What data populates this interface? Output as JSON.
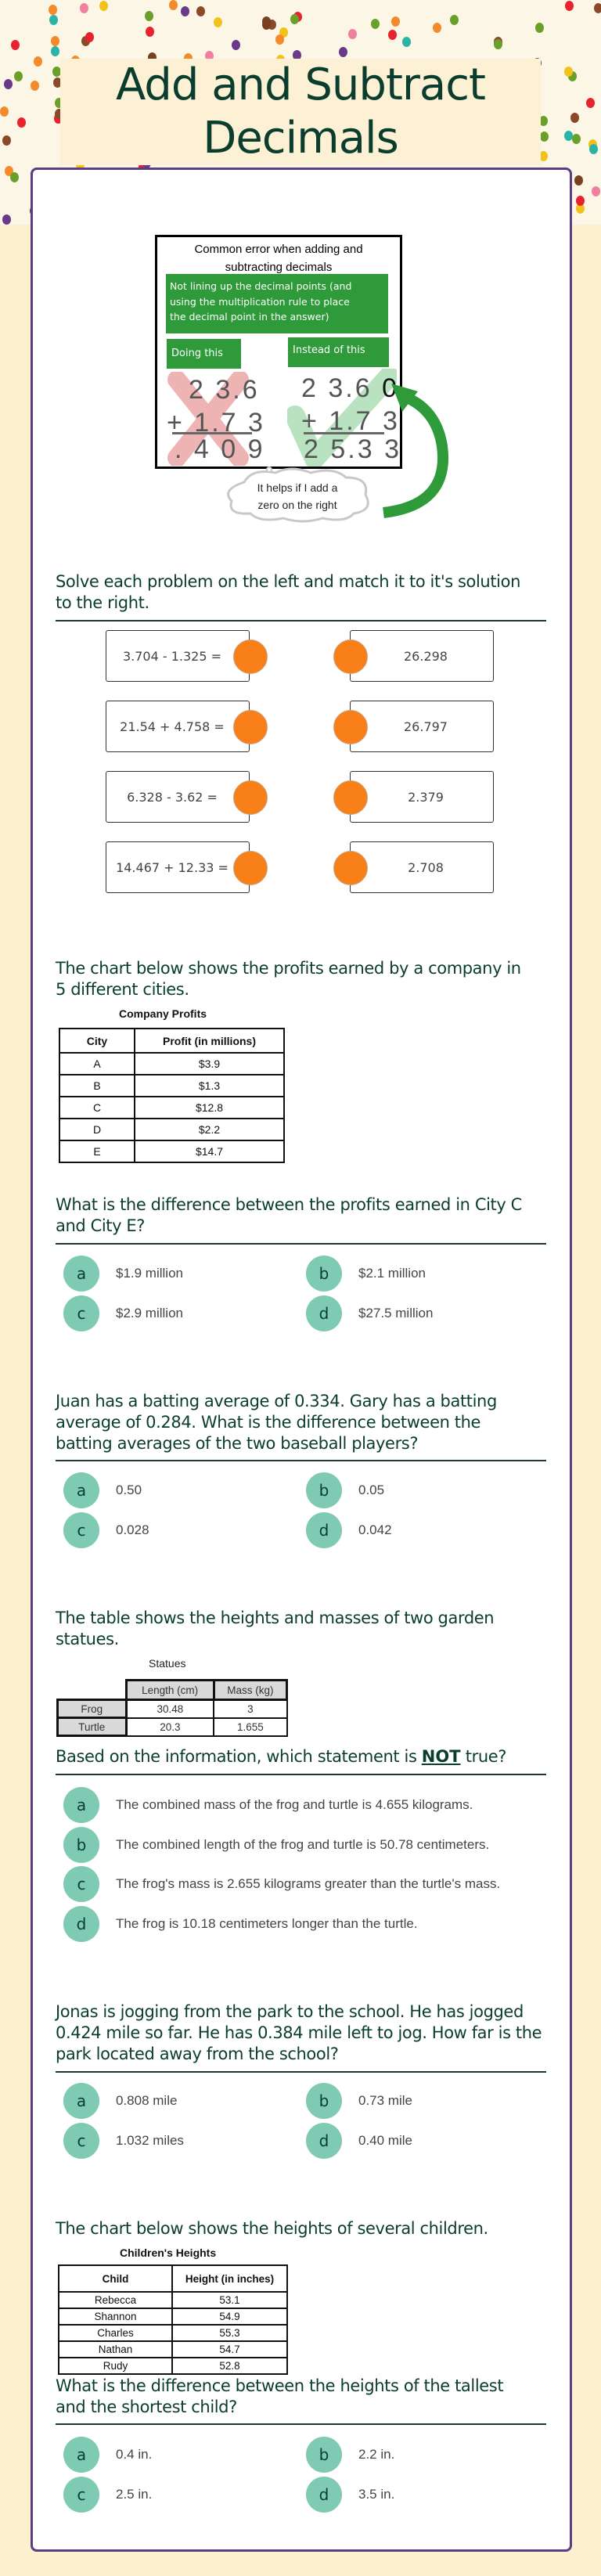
{
  "title": [
    "Add and Subtract",
    "Decimals"
  ],
  "colors": {
    "title": "#0b3d2e",
    "card_border": "#5a3d82",
    "option_bubble": "#7ecab3",
    "match_dot": "#f98019",
    "green_label": "#2f9a3a",
    "page_bg": "#fdf0cf"
  },
  "error_image": {
    "title": [
      "Common error when adding and",
      "subtracting decimals"
    ],
    "note": [
      "Not lining up the decimal points (and",
      "using the multiplication rule to place",
      "the decimal point in the answer)"
    ],
    "wrong_label": "Doing this",
    "right_label": "Instead of this",
    "wrong": [
      "2 3.6",
      "+ 1.7 3",
      ". 4 0 9"
    ],
    "right": [
      "2 3.6 ",
      "0",
      "+ 1.7 3",
      "2 5.3 3"
    ],
    "cloud": [
      "It helps if I add a",
      "zero on the right"
    ]
  },
  "matching": {
    "prompt": [
      "Solve each problem on the left and match it to it's solution",
      "to the right."
    ],
    "problems": [
      "3.704 - 1.325 =",
      "21.54 + 4.758 =",
      "6.328 - 3.62 =",
      "14.467 + 12.33 ="
    ],
    "solutions": [
      "26.298",
      "26.797",
      "2.379",
      "2.708"
    ]
  },
  "q1": {
    "intro": [
      "The chart below shows the profits earned by a company in",
      "5 different cities."
    ],
    "table_title": "Company Profits",
    "headers": [
      "City",
      "Profit (in millions)"
    ],
    "rows": [
      [
        "A",
        "$3.9"
      ],
      [
        "B",
        "$1.3"
      ],
      [
        "C",
        "$12.8"
      ],
      [
        "D",
        "$2.2"
      ],
      [
        "E",
        "$14.7"
      ]
    ],
    "question": [
      "What is the difference between the profits earned in City C",
      "and City E?"
    ],
    "options": [
      {
        "letter": "a",
        "text": "$1.9 million"
      },
      {
        "letter": "b",
        "text": "$2.1 million"
      },
      {
        "letter": "c",
        "text": "$2.9 million"
      },
      {
        "letter": "d",
        "text": "$27.5 million"
      }
    ]
  },
  "q2": {
    "question": [
      "Juan has a batting average of 0.334. Gary has a batting",
      "average of 0.284. What is the difference between the",
      "batting averages of the two baseball players?"
    ],
    "options": [
      {
        "letter": "a",
        "text": "0.50"
      },
      {
        "letter": "b",
        "text": "0.05"
      },
      {
        "letter": "c",
        "text": "0.028"
      },
      {
        "letter": "d",
        "text": "0.042"
      }
    ]
  },
  "q3": {
    "intro": [
      "The table shows the heights and masses of two garden",
      "statues."
    ],
    "table_title": "Statues",
    "headers": [
      "",
      "Length (cm)",
      "Mass (kg)"
    ],
    "rows": [
      [
        "Frog",
        "30.48",
        "3"
      ],
      [
        "Turtle",
        "20.3",
        "1.655"
      ]
    ],
    "question_pre": "Based on the information, which statement is ",
    "question_emph": "NOT",
    "question_post": " true?",
    "options": [
      {
        "letter": "a",
        "text": "The combined mass of the frog and turtle is 4.655 kilograms."
      },
      {
        "letter": "b",
        "text": "The combined length of the frog and turtle is 50.78 centimeters."
      },
      {
        "letter": "c",
        "text": "The frog's mass is 2.655 kilograms greater than the turtle's mass."
      },
      {
        "letter": "d",
        "text": "The frog is 10.18 centimeters longer than the turtle."
      }
    ]
  },
  "q4": {
    "question": [
      "Jonas is jogging from the park to the school. He has jogged",
      "0.424 mile so far. He has 0.384 mile left to jog. How far is the",
      "park located away from the school?"
    ],
    "options": [
      {
        "letter": "a",
        "text": "0.808 mile"
      },
      {
        "letter": "b",
        "text": "0.73 mile"
      },
      {
        "letter": "c",
        "text": "1.032 miles"
      },
      {
        "letter": "d",
        "text": "0.40 mile"
      }
    ]
  },
  "q5": {
    "intro": [
      "The chart below shows the heights of several children."
    ],
    "table_title": "Children's Heights",
    "headers": [
      "Child",
      "Height (in inches)"
    ],
    "rows": [
      [
        "Rebecca",
        "53.1"
      ],
      [
        "Shannon",
        "54.9"
      ],
      [
        "Charles",
        "55.3"
      ],
      [
        "Nathan",
        "54.7"
      ],
      [
        "Rudy",
        "52.8"
      ]
    ],
    "question": [
      "What is the difference between the heights of the tallest",
      "and the shortest child?"
    ],
    "options": [
      {
        "letter": "a",
        "text": "0.4 in."
      },
      {
        "letter": "b",
        "text": "2.2 in."
      },
      {
        "letter": "c",
        "text": "2.5 in."
      },
      {
        "letter": "d",
        "text": "3.5 in."
      }
    ]
  }
}
